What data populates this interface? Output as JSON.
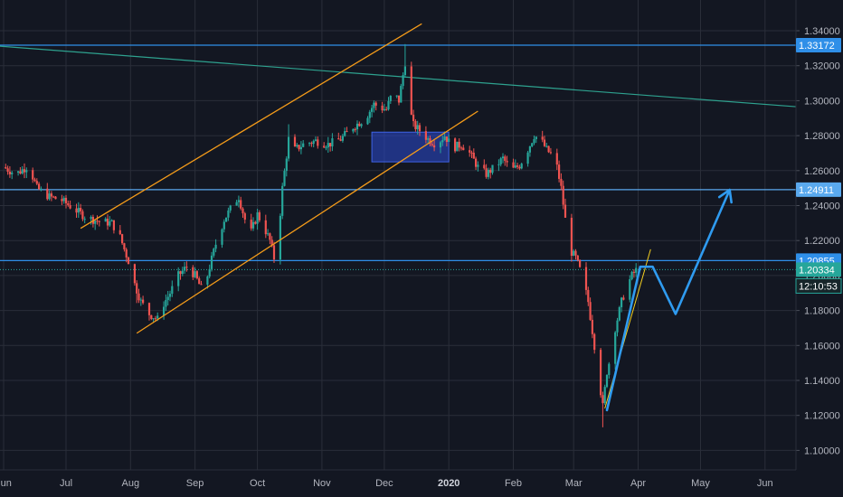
{
  "chart_data": {
    "type": "candlestick",
    "title": "",
    "y_range": [
      1.09,
      1.35
    ],
    "y_ticks": [
      "1.34000",
      "1.32000",
      "1.30000",
      "1.28000",
      "1.26000",
      "1.24000",
      "1.22000",
      "1.20000",
      "1.18000",
      "1.16000",
      "1.14000",
      "1.12000",
      "1.10000"
    ],
    "x_range": [
      0,
      400
    ],
    "x_ticks": [
      {
        "label": "Jun",
        "day": 0
      },
      {
        "label": "Jul",
        "day": 30
      },
      {
        "label": "Aug",
        "day": 61
      },
      {
        "label": "Sep",
        "day": 92
      },
      {
        "label": "Oct",
        "day": 122
      },
      {
        "label": "Nov",
        "day": 153
      },
      {
        "label": "Dec",
        "day": 183
      },
      {
        "label": "2020",
        "day": 214
      },
      {
        "label": "Feb",
        "day": 245
      },
      {
        "label": "Mar",
        "day": 274
      },
      {
        "label": "Apr",
        "day": 305
      },
      {
        "label": "May",
        "day": 335
      },
      {
        "label": "Jun",
        "day": 366
      }
    ],
    "anchors": [
      [
        0,
        1.262
      ],
      [
        6,
        1.258
      ],
      [
        12,
        1.263
      ],
      [
        16,
        1.25
      ],
      [
        22,
        1.245
      ],
      [
        28,
        1.243
      ],
      [
        34,
        1.238
      ],
      [
        40,
        1.233
      ],
      [
        46,
        1.231
      ],
      [
        52,
        1.23
      ],
      [
        56,
        1.222
      ],
      [
        58,
        1.215
      ],
      [
        61,
        1.205
      ],
      [
        63,
        1.195
      ],
      [
        66,
        1.185
      ],
      [
        70,
        1.178
      ],
      [
        74,
        1.175
      ],
      [
        76,
        1.182
      ],
      [
        80,
        1.19
      ],
      [
        84,
        1.2
      ],
      [
        88,
        1.205
      ],
      [
        92,
        1.2
      ],
      [
        96,
        1.19
      ],
      [
        99,
        1.205
      ],
      [
        102,
        1.218
      ],
      [
        106,
        1.232
      ],
      [
        110,
        1.24
      ],
      [
        113,
        1.245
      ],
      [
        116,
        1.232
      ],
      [
        119,
        1.225
      ],
      [
        122,
        1.235
      ],
      [
        125,
        1.228
      ],
      [
        128,
        1.22
      ],
      [
        130,
        1.21
      ],
      [
        132,
        1.222
      ],
      [
        134,
        1.25
      ],
      [
        137,
        1.278
      ],
      [
        140,
        1.272
      ],
      [
        144,
        1.275
      ],
      [
        150,
        1.277
      ],
      [
        156,
        1.275
      ],
      [
        162,
        1.278
      ],
      [
        168,
        1.285
      ],
      [
        174,
        1.29
      ],
      [
        178,
        1.298
      ],
      [
        181,
        1.296
      ],
      [
        184,
        1.295
      ],
      [
        187,
        1.305
      ],
      [
        190,
        1.3
      ],
      [
        193,
        1.322
      ],
      [
        195,
        1.296
      ],
      [
        197,
        1.286
      ],
      [
        200,
        1.283
      ],
      [
        204,
        1.278
      ],
      [
        208,
        1.275
      ],
      [
        212,
        1.28
      ],
      [
        216,
        1.273
      ],
      [
        220,
        1.275
      ],
      [
        224,
        1.27
      ],
      [
        228,
        1.262
      ],
      [
        232,
        1.258
      ],
      [
        236,
        1.262
      ],
      [
        240,
        1.267
      ],
      [
        244,
        1.26
      ],
      [
        248,
        1.263
      ],
      [
        252,
        1.272
      ],
      [
        255,
        1.28
      ],
      [
        258,
        1.278
      ],
      [
        261,
        1.272
      ],
      [
        264,
        1.268
      ],
      [
        266,
        1.262
      ],
      [
        268,
        1.25
      ],
      [
        270,
        1.232
      ],
      [
        272,
        1.215
      ],
      [
        275,
        1.21
      ],
      [
        278,
        1.2
      ],
      [
        281,
        1.185
      ],
      [
        284,
        1.16
      ],
      [
        286,
        1.142
      ],
      [
        288,
        1.125
      ],
      [
        290,
        1.145
      ],
      [
        292,
        1.155
      ],
      [
        294,
        1.17
      ],
      [
        297,
        1.185
      ],
      [
        300,
        1.195
      ],
      [
        302,
        1.2
      ],
      [
        304,
        1.203
      ]
    ],
    "current_value": 1.20334,
    "countdown": "12:10:53",
    "horizontal_levels": [
      {
        "value": 1.33172,
        "label": "1.33172",
        "color": "#2f8fe8"
      },
      {
        "value": 1.24911,
        "label": "1.24911",
        "color": "#5aa9ee"
      },
      {
        "value": 1.20855,
        "label": "1.20855",
        "color": "#2f8fe8"
      }
    ],
    "current_tag": {
      "value": 1.20334,
      "label": "1.20334",
      "color": "#26a69a"
    },
    "time_tag": {
      "label": "12:10:53",
      "color": "#26a69a"
    },
    "colors": {
      "up": "#26a69a",
      "down": "#ef5350",
      "background": "#131722",
      "grid": "#2a2e39",
      "channel": "#f59c1a",
      "trendline": "#2ea28f",
      "projection": "#2f9bf0",
      "zone": "#2b4bd1"
    },
    "annotations": [
      {
        "type": "channel_line",
        "points": [
          [
            37,
            1.227
          ],
          [
            201,
            1.344
          ]
        ]
      },
      {
        "type": "channel_line",
        "points": [
          [
            64,
            1.167
          ],
          [
            228,
            1.294
          ]
        ]
      },
      {
        "type": "trend_line",
        "points": [
          [
            0,
            1.331
          ],
          [
            398,
            1.295
          ]
        ]
      },
      {
        "type": "rectangle",
        "x": [
          177,
          214
        ],
        "y": [
          1.265,
          1.282
        ]
      },
      {
        "type": "small_line",
        "points": [
          [
            289,
            1.124
          ],
          [
            311,
            1.215
          ]
        ]
      },
      {
        "type": "projection_path",
        "points": [
          [
            290,
            1.123
          ],
          [
            306,
            1.205
          ],
          [
            312,
            1.205
          ],
          [
            323,
            1.178
          ],
          [
            349,
            1.249
          ]
        ]
      }
    ]
  }
}
